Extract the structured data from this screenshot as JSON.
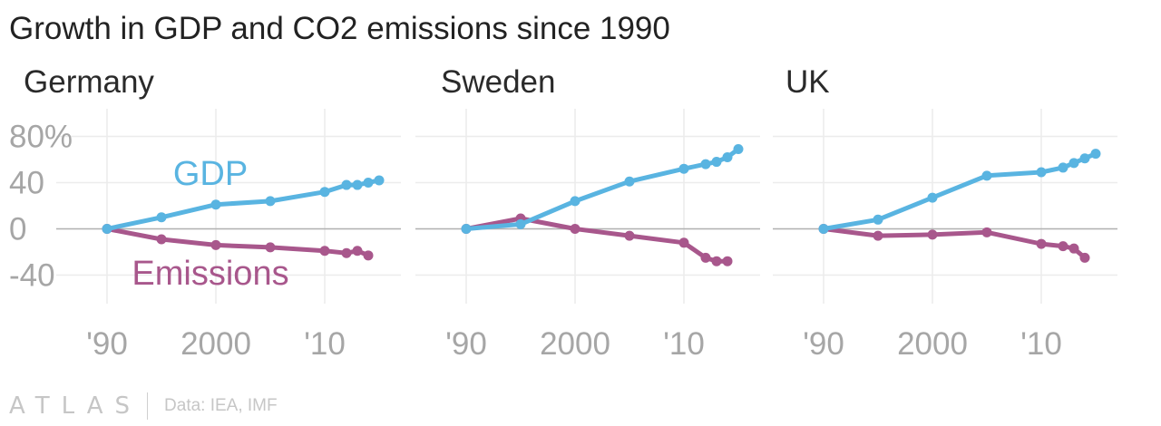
{
  "title": "Growth in GDP and CO2 emissions since 1990",
  "footer": {
    "brand": "ATLAS",
    "source": "Data: IEA, IMF"
  },
  "colors": {
    "gdp": "#59b4e1",
    "emissions": "#a8578c",
    "grid": "#ececec",
    "zero": "#b0b0b0",
    "tick": "#a6a6a6",
    "panel_title": "#2a2a2a"
  },
  "chart_data": [
    {
      "type": "line",
      "title": "Germany",
      "ylim": [
        -55,
        92
      ],
      "xlim": [
        1990,
        2016
      ],
      "y_ticks": [
        80,
        40,
        0,
        -40
      ],
      "y_tick_labels": [
        "80%",
        "40",
        "0",
        "-40"
      ],
      "x_ticks": [
        1990,
        2000,
        2010
      ],
      "x_tick_labels": [
        "'90",
        "2000",
        "'10"
      ],
      "grid": true,
      "annotations": [
        "GDP",
        "Emissions"
      ],
      "series": [
        {
          "name": "GDP",
          "x": [
            1990,
            1995,
            2000,
            2005,
            2010,
            2012,
            2013,
            2014,
            2015
          ],
          "y": [
            0,
            10,
            21,
            24,
            32,
            38,
            38,
            40,
            42
          ]
        },
        {
          "name": "Emissions",
          "x": [
            1990,
            1995,
            2000,
            2005,
            2010,
            2012,
            2013,
            2014
          ],
          "y": [
            0,
            -9,
            -14,
            -16,
            -19,
            -21,
            -19,
            -23
          ]
        }
      ]
    },
    {
      "type": "line",
      "title": "Sweden",
      "ylim": [
        -55,
        92
      ],
      "xlim": [
        1990,
        2016
      ],
      "x_ticks": [
        1990,
        2000,
        2010
      ],
      "x_tick_labels": [
        "'90",
        "2000",
        "'10"
      ],
      "grid": true,
      "series": [
        {
          "name": "GDP",
          "x": [
            1990,
            1995,
            2000,
            2005,
            2010,
            2012,
            2013,
            2014,
            2015
          ],
          "y": [
            0,
            4,
            24,
            41,
            52,
            56,
            58,
            62,
            69
          ]
        },
        {
          "name": "Emissions",
          "x": [
            1990,
            1995,
            2000,
            2005,
            2010,
            2012,
            2013,
            2014
          ],
          "y": [
            0,
            9,
            0,
            -6,
            -12,
            -25,
            -28,
            -28
          ]
        }
      ]
    },
    {
      "type": "line",
      "title": "UK",
      "ylim": [
        -55,
        92
      ],
      "xlim": [
        1990,
        2016
      ],
      "x_ticks": [
        1990,
        2000,
        2010
      ],
      "x_tick_labels": [
        "'90",
        "2000",
        "'10"
      ],
      "grid": true,
      "series": [
        {
          "name": "GDP",
          "x": [
            1990,
            1995,
            2000,
            2005,
            2010,
            2012,
            2013,
            2014,
            2015
          ],
          "y": [
            0,
            8,
            27,
            46,
            49,
            53,
            57,
            61,
            65
          ]
        },
        {
          "name": "Emissions",
          "x": [
            1990,
            1995,
            2000,
            2005,
            2010,
            2012,
            2013,
            2014
          ],
          "y": [
            0,
            -6,
            -5,
            -3,
            -13,
            -15,
            -17,
            -25
          ]
        }
      ]
    }
  ]
}
